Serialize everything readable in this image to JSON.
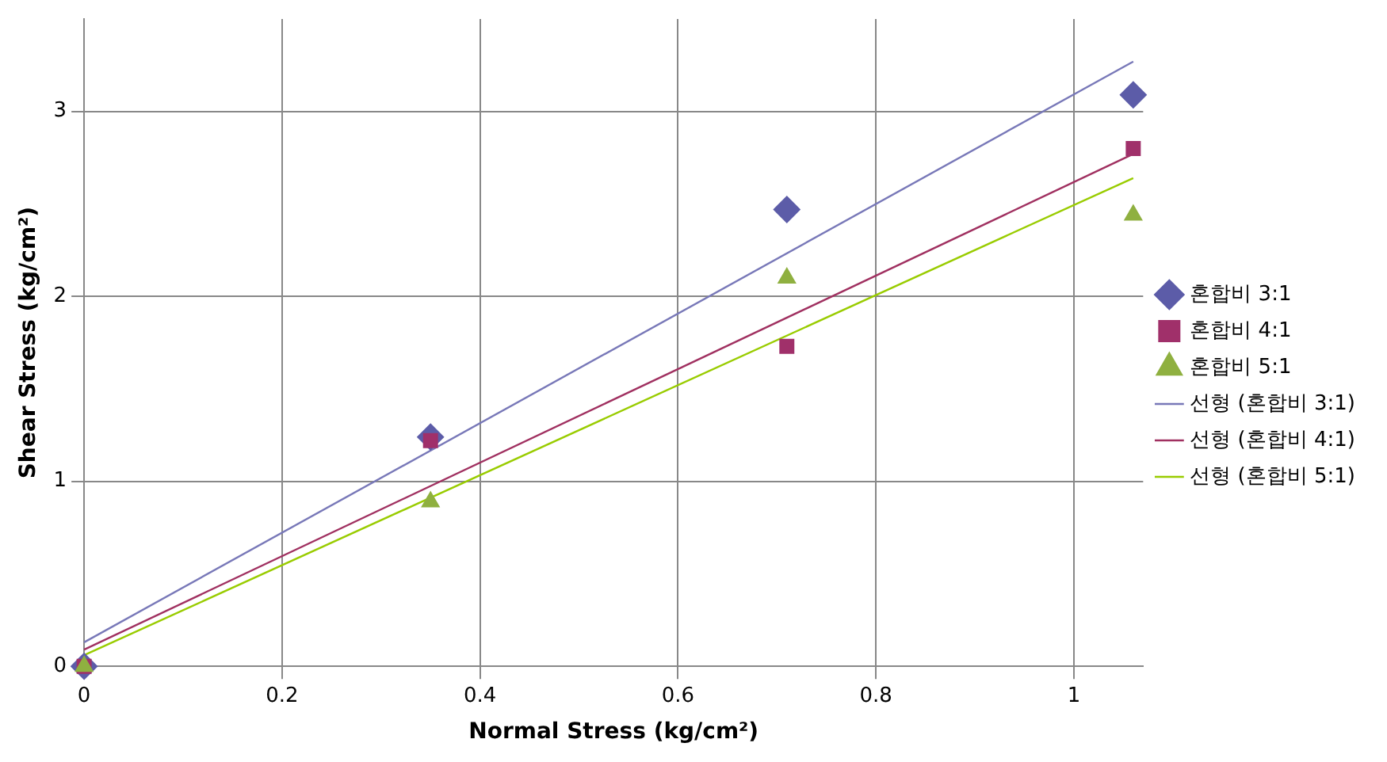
{
  "chart_data": {
    "type": "scatter",
    "xlabel": "Normal Stress (kg/cm²)",
    "ylabel": "Shear Stress (kg/cm²)",
    "xlim": [
      0,
      1.07
    ],
    "ylim": [
      0,
      3.5
    ],
    "xticks": [
      0,
      0.2,
      0.4,
      0.6,
      0.8,
      1
    ],
    "yticks": [
      0,
      1,
      2,
      3
    ],
    "grid": true,
    "legend": "right",
    "series": [
      {
        "name": "혼합비 3:1",
        "marker": "diamond",
        "color": "#5c5ca8",
        "x": [
          0,
          0.35,
          0.71,
          1.06
        ],
        "values": [
          0,
          1.24,
          2.47,
          3.09
        ]
      },
      {
        "name": "혼합비 4:1",
        "marker": "square",
        "color": "#a0306a",
        "x": [
          0,
          0.35,
          0.71,
          1.06
        ],
        "values": [
          0,
          1.22,
          1.73,
          2.8
        ]
      },
      {
        "name": "혼합비 5:1",
        "marker": "triangle",
        "color": "#8fb040",
        "x": [
          0,
          0.35,
          0.71,
          1.06
        ],
        "values": [
          0,
          0.89,
          2.1,
          2.44
        ]
      },
      {
        "name": "선형 (혼합비 3:1)",
        "type": "line",
        "marker": "none",
        "color": "#7878b8",
        "x": [
          0,
          1.06
        ],
        "values": [
          0.13,
          3.27
        ]
      },
      {
        "name": "선형 (혼합비 4:1)",
        "type": "line",
        "marker": "none",
        "color": "#a03060",
        "x": [
          0,
          1.06
        ],
        "values": [
          0.09,
          2.77
        ]
      },
      {
        "name": "선형 (혼합비 5:1)",
        "type": "line",
        "marker": "none",
        "color": "#99cc00",
        "x": [
          0,
          1.06
        ],
        "values": [
          0.06,
          2.64
        ]
      }
    ]
  }
}
